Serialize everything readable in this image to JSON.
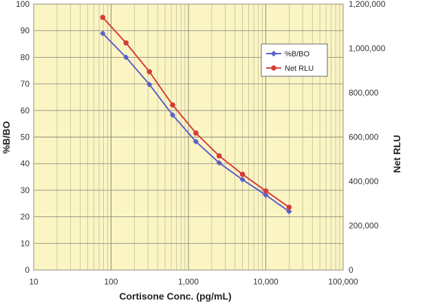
{
  "chart_data": {
    "type": "line",
    "xlabel": "Cortisone Conc. (pg/mL)",
    "ylabel": "%B/BO",
    "y2label": "Net RLU",
    "x_scale": "log",
    "xlim": [
      10,
      100000
    ],
    "ylim": [
      0,
      100
    ],
    "y2lim": [
      0,
      1200000
    ],
    "x_ticks": [
      {
        "value": 10,
        "label": "10"
      },
      {
        "value": 100,
        "label": "100"
      },
      {
        "value": 1000,
        "label": "1,000"
      },
      {
        "value": 10000,
        "label": "10,000"
      },
      {
        "value": 100000,
        "label": "100,000"
      }
    ],
    "y_ticks": [
      {
        "value": 0,
        "label": "0"
      },
      {
        "value": 10,
        "label": "10"
      },
      {
        "value": 20,
        "label": "20"
      },
      {
        "value": 30,
        "label": "30"
      },
      {
        "value": 40,
        "label": "40"
      },
      {
        "value": 50,
        "label": "50"
      },
      {
        "value": 60,
        "label": "60"
      },
      {
        "value": 70,
        "label": "70"
      },
      {
        "value": 80,
        "label": "80"
      },
      {
        "value": 90,
        "label": "90"
      },
      {
        "value": 100,
        "label": "100"
      }
    ],
    "y2_ticks": [
      {
        "value": 0,
        "label": "0"
      },
      {
        "value": 200000,
        "label": "200,000"
      },
      {
        "value": 400000,
        "label": "400,000"
      },
      {
        "value": 600000,
        "label": "600,000"
      },
      {
        "value": 800000,
        "label": "800,000"
      },
      {
        "value": 1000000,
        "label": "1,000,000"
      },
      {
        "value": 1200000,
        "label": "1,200,000"
      }
    ],
    "grid": true,
    "legend_position": "top-right",
    "series": [
      {
        "name": "%B/BO",
        "axis": "left",
        "color": "#5b5fc7",
        "marker": "diamond",
        "x": [
          78,
          156,
          313,
          625,
          1250,
          2500,
          5000,
          10000,
          20000
        ],
        "y": [
          89,
          80,
          69.8,
          58.3,
          48.3,
          40.3,
          34,
          28.2,
          22
        ]
      },
      {
        "name": "Net RLU",
        "axis": "right",
        "color": "#d53d36",
        "marker": "circle",
        "x": [
          78,
          156,
          313,
          625,
          1250,
          2500,
          5000,
          10000,
          20000
        ],
        "y": [
          1140000,
          1025000,
          895000,
          745000,
          618000,
          515000,
          432000,
          357000,
          283000
        ]
      }
    ]
  }
}
